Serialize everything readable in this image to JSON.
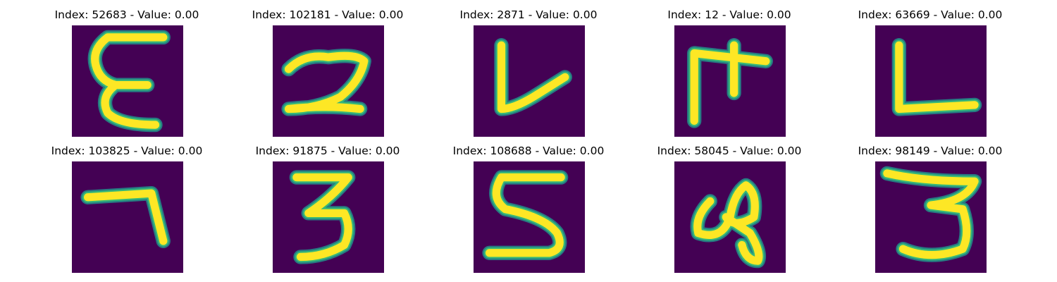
{
  "colors": {
    "background": "#440154",
    "stroke_core": "#fde725",
    "stroke_mid": "#35b779",
    "stroke_outer": "#21918c"
  },
  "panels": [
    {
      "title": "Index: 52683 - Value: 0.00",
      "glyph": "E"
    },
    {
      "title": "Index: 102181 - Value: 0.00",
      "glyph": "2"
    },
    {
      "title": "Index: 2871 - Value: 0.00",
      "glyph": "V"
    },
    {
      "title": "Index: 12 - Value: 0.00",
      "glyph": "F"
    },
    {
      "title": "Index: 63669 - Value: 0.00",
      "glyph": "L"
    },
    {
      "title": "Index: 103825 - Value: 0.00",
      "glyph": "7"
    },
    {
      "title": "Index: 91875 - Value: 0.00",
      "glyph": "3"
    },
    {
      "title": "Index: 108688 - Value: 0.00",
      "glyph": "S"
    },
    {
      "title": "Index: 58045 - Value: 0.00",
      "glyph": "g"
    },
    {
      "title": "Index: 98149 - Value: 0.00",
      "glyph": "3"
    }
  ]
}
